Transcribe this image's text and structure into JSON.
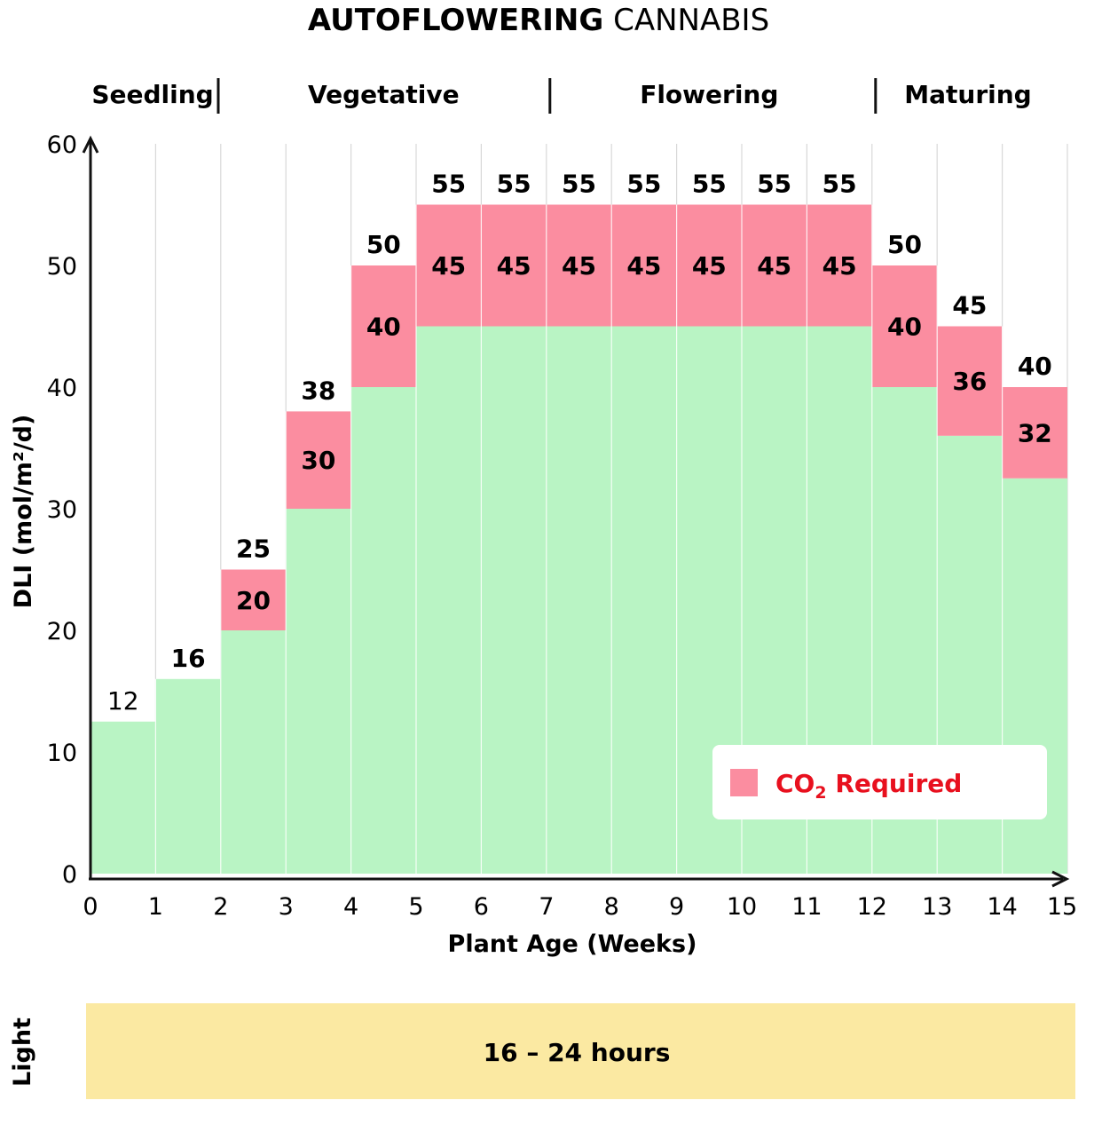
{
  "chart_data": {
    "type": "bar",
    "title_bold": "AUTOFLOWERING",
    "title_rest": " CANNABIS",
    "stages": [
      {
        "name": "Seedling",
        "start": 0,
        "end": 2
      },
      {
        "name": "Vegetative",
        "start": 2,
        "end": 7
      },
      {
        "name": "Flowering",
        "start": 7,
        "end": 12
      },
      {
        "name": "Maturing",
        "start": 12,
        "end": 15
      }
    ],
    "xlabel": "Plant Age (Weeks)",
    "ylabel": "DLI (mol/m²/d)",
    "xlim": [
      0,
      15
    ],
    "ylim": [
      0,
      60
    ],
    "x_ticks": [
      "0",
      "1",
      "2",
      "3",
      "4",
      "5",
      "6",
      "7",
      "8",
      "9",
      "10",
      "11",
      "12",
      "13",
      "14",
      "15"
    ],
    "y_ticks": [
      "0",
      "10",
      "20",
      "30",
      "40",
      "50",
      "60"
    ],
    "weeks": [
      {
        "start": 0,
        "end": 1,
        "base": 12.5,
        "base_label": "12",
        "co2": null,
        "top_label": "12"
      },
      {
        "start": 1,
        "end": 2,
        "base": 16,
        "base_label": "16",
        "co2": null,
        "top_label": "16"
      },
      {
        "start": 2,
        "end": 3,
        "base": 20,
        "base_label": "20",
        "co2": 25,
        "top_label": "25"
      },
      {
        "start": 3,
        "end": 4,
        "base": 30,
        "base_label": "30",
        "co2": 38,
        "top_label": "38"
      },
      {
        "start": 4,
        "end": 5,
        "base": 40,
        "base_label": "40",
        "co2": 50,
        "top_label": "50"
      },
      {
        "start": 5,
        "end": 6,
        "base": 45,
        "base_label": "45",
        "co2": 55,
        "top_label": "55"
      },
      {
        "start": 6,
        "end": 7,
        "base": 45,
        "base_label": "45",
        "co2": 55,
        "top_label": "55"
      },
      {
        "start": 7,
        "end": 8,
        "base": 45,
        "base_label": "45",
        "co2": 55,
        "top_label": "55"
      },
      {
        "start": 8,
        "end": 9,
        "base": 45,
        "base_label": "45",
        "co2": 55,
        "top_label": "55"
      },
      {
        "start": 9,
        "end": 10,
        "base": 45,
        "base_label": "45",
        "co2": 55,
        "top_label": "55"
      },
      {
        "start": 10,
        "end": 11,
        "base": 45,
        "base_label": "45",
        "co2": 55,
        "top_label": "55"
      },
      {
        "start": 11,
        "end": 12,
        "base": 45,
        "base_label": "45",
        "co2": 55,
        "top_label": "55"
      },
      {
        "start": 12,
        "end": 13,
        "base": 40,
        "base_label": "40",
        "co2": 50,
        "top_label": "50"
      },
      {
        "start": 13,
        "end": 14,
        "base": 36,
        "base_label": "36",
        "co2": 45,
        "top_label": "45"
      },
      {
        "start": 14,
        "end": 15,
        "base": 32.5,
        "base_label": "32",
        "co2": 40,
        "top_label": "40"
      }
    ],
    "legend": {
      "label_main": "CO",
      "label_sub": "2",
      "label_rest": " Required",
      "placement": "bottom-right"
    },
    "light": {
      "side_label": "Light",
      "text": "16 – 24 hours"
    },
    "colors": {
      "base": "#b9f4c4",
      "co2": "#fb8da0",
      "light_band": "#fbe9a2",
      "legend_text": "#e8101e",
      "gridline": "#d8d8d8",
      "axis": "#111111"
    }
  }
}
